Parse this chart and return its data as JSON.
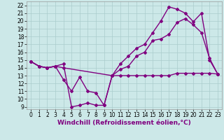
{
  "bg_color": "#cce8e8",
  "line_color": "#800080",
  "xlabel": "Windchill (Refroidissement éolien,°C)",
  "xlim": [
    -0.5,
    23.5
  ],
  "ylim": [
    8.7,
    22.5
  ],
  "yticks": [
    9,
    10,
    11,
    12,
    13,
    14,
    15,
    16,
    17,
    18,
    19,
    20,
    21,
    22
  ],
  "xticks": [
    0,
    1,
    2,
    3,
    4,
    5,
    6,
    7,
    8,
    9,
    10,
    11,
    12,
    13,
    14,
    15,
    16,
    17,
    18,
    19,
    20,
    21,
    22,
    23
  ],
  "grid_color": "#aacccc",
  "line1_x": [
    0,
    1,
    2,
    3,
    4,
    10,
    11,
    12,
    13,
    14,
    15,
    16,
    17,
    18,
    19,
    20,
    21,
    22,
    23
  ],
  "line1_y": [
    14.8,
    14.2,
    14.0,
    14.2,
    14.0,
    13.0,
    13.0,
    13.0,
    13.0,
    13.0,
    13.0,
    13.0,
    13.0,
    13.3,
    13.3,
    13.3,
    13.3,
    13.3,
    13.2
  ],
  "line2_x": [
    0,
    1,
    2,
    3,
    4,
    5,
    6,
    7,
    8,
    9,
    10,
    11,
    12,
    13,
    14,
    15,
    16,
    17,
    18,
    19,
    20,
    21,
    22,
    23
  ],
  "line2_y": [
    14.8,
    14.2,
    14.0,
    14.2,
    12.5,
    11.0,
    12.8,
    11.0,
    10.8,
    9.2,
    13.0,
    13.8,
    14.2,
    15.5,
    16.0,
    17.5,
    17.7,
    18.3,
    19.8,
    20.3,
    19.5,
    18.5,
    15.2,
    13.2
  ],
  "line3_x": [
    0,
    1,
    2,
    3,
    4,
    5,
    6,
    7,
    8,
    9,
    10,
    11,
    12,
    13,
    14,
    15,
    16,
    17,
    18,
    19,
    20,
    21,
    22,
    23
  ],
  "line3_y": [
    14.8,
    14.2,
    14.0,
    14.2,
    14.5,
    9.0,
    9.2,
    9.5,
    9.2,
    9.2,
    13.0,
    14.5,
    15.5,
    16.5,
    17.0,
    18.5,
    20.0,
    21.8,
    21.5,
    21.0,
    19.9,
    21.0,
    15.0,
    13.2
  ],
  "marker": "D",
  "markersize": 2,
  "linewidth": 1.0,
  "xlabel_fontsize": 6.5,
  "tick_fontsize": 5.5
}
